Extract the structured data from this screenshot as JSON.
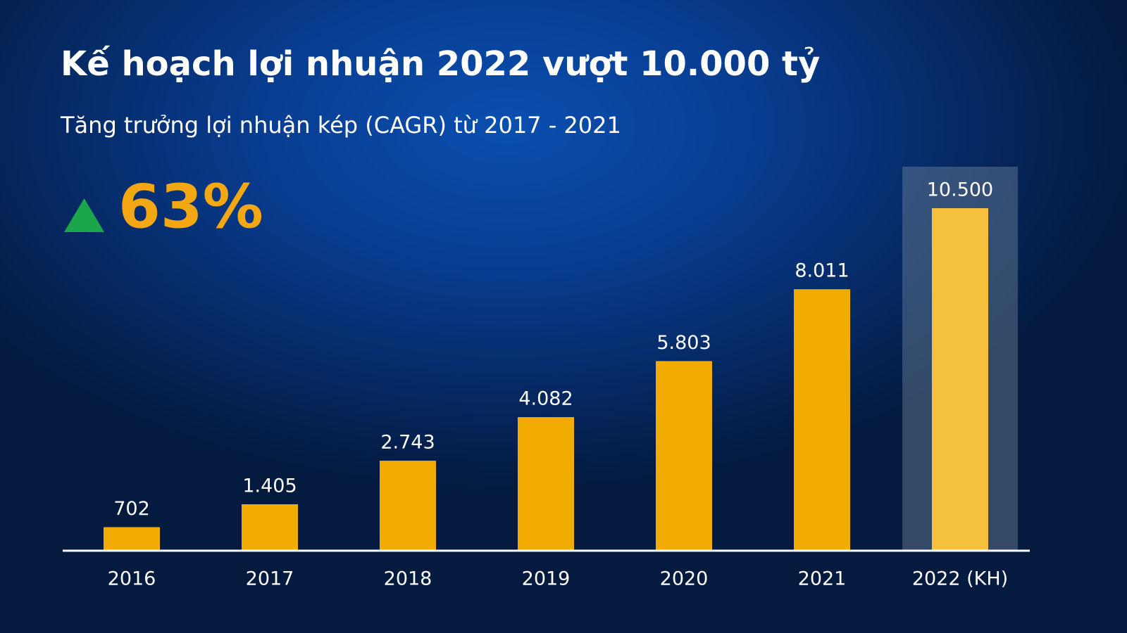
{
  "chart_data": {
    "type": "bar",
    "title": "Kế hoạch lợi nhuận 2022 vượt 10.000 tỷ",
    "subtitle": "Tăng trưởng lợi nhuận kép (CAGR) từ 2017 - 2021",
    "annotation": "63%",
    "categories": [
      "2016",
      "2017",
      "2018",
      "2019",
      "2020",
      "2021",
      "2022 (KH)"
    ],
    "values": [
      702,
      1405,
      2743,
      4082,
      5803,
      8011,
      10500
    ],
    "value_labels": [
      "702",
      "1.405",
      "2.743",
      "4.082",
      "5.803",
      "8.011",
      "10.500"
    ],
    "color": "#f2ab00",
    "highlight": 6,
    "highlight_color": "#f5c13c"
  }
}
